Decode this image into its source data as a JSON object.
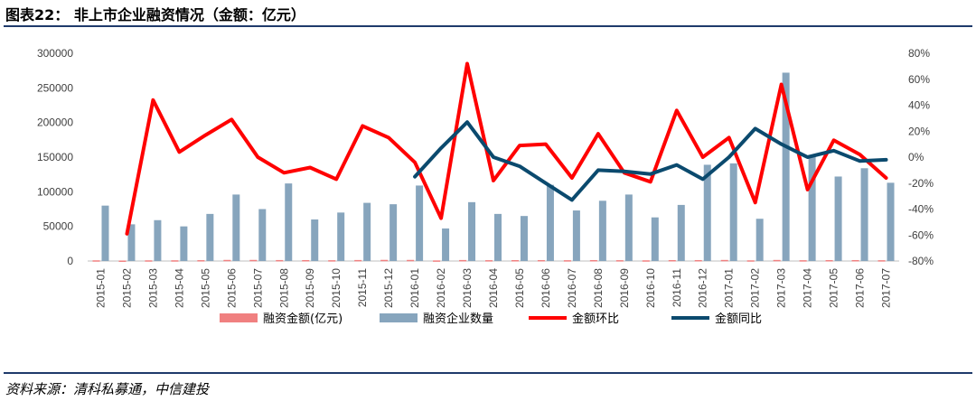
{
  "header": {
    "title": "图表22：  非上市企业融资情况（金额：亿元）"
  },
  "footer": {
    "source": "资料来源：清科私募通，中信建投"
  },
  "colors": {
    "amount": "#f08080",
    "count": "#87a5bd",
    "mom": "#ff0000",
    "yoy": "#0b4a6e",
    "rule": "#1f3a6b"
  },
  "chart_data": {
    "type": "bar",
    "categories": [
      "2015-01",
      "2015-02",
      "2015-03",
      "2015-04",
      "2015-05",
      "2015-06",
      "2015-07",
      "2015-08",
      "2015-09",
      "2015-10",
      "2015-11",
      "2015-12",
      "2016-01",
      "2016-02",
      "2016-03",
      "2016-04",
      "2016-05",
      "2016-06",
      "2016-07",
      "2016-08",
      "2016-09",
      "2016-10",
      "2016-11",
      "2016-12",
      "2017-01",
      "2017-02",
      "2017-03",
      "2017-04",
      "2017-05",
      "2017-06",
      "2017-07"
    ],
    "left_axis": {
      "ylim": [
        0,
        300000
      ],
      "ticks": [
        0,
        50000,
        100000,
        150000,
        200000,
        250000,
        300000
      ]
    },
    "right_axis": {
      "ylim": [
        -80,
        80
      ],
      "ticks": [
        -80,
        -60,
        -40,
        -20,
        0,
        20,
        40,
        60,
        80
      ],
      "unit": "%"
    },
    "series": [
      {
        "name": "融资金额(亿元)",
        "type": "bar",
        "axis": "left",
        "values": [
          1000,
          700,
          1000,
          1050,
          1250,
          1600,
          1600,
          1400,
          1350,
          1150,
          1450,
          1650,
          1600,
          850,
          1450,
          1200,
          1300,
          1350,
          1150,
          1350,
          1200,
          1000,
          1350,
          1350,
          1550,
          1000,
          1550,
          1150,
          1300,
          1350,
          1150
        ]
      },
      {
        "name": "融资企业数量",
        "type": "bar",
        "axis": "left",
        "values": [
          80000,
          53000,
          59000,
          50000,
          68000,
          96000,
          75000,
          112000,
          60000,
          70000,
          84000,
          82000,
          109000,
          47000,
          85000,
          68000,
          65000,
          110000,
          73000,
          87000,
          96000,
          63000,
          81000,
          139000,
          141000,
          61000,
          272000,
          153000,
          122000,
          134000,
          113000
        ]
      },
      {
        "name": "金额环比",
        "type": "line",
        "axis": "right",
        "values": [
          null,
          -59,
          44,
          4,
          17,
          29,
          0,
          -12,
          -8,
          -17,
          24,
          15,
          -4,
          -47,
          72,
          -18,
          9,
          10,
          -16,
          18,
          -12,
          -19,
          36,
          0,
          15,
          -35,
          56,
          -25,
          13,
          2,
          -16
        ]
      },
      {
        "name": "金额同比",
        "type": "line",
        "axis": "right",
        "values": [
          null,
          null,
          null,
          null,
          null,
          null,
          null,
          null,
          null,
          null,
          null,
          null,
          -15,
          7,
          27,
          0,
          -7,
          -20,
          -33,
          -10,
          -11,
          -13,
          -6,
          -17,
          0,
          22,
          10,
          0,
          5,
          -3,
          -2
        ]
      }
    ],
    "legend_position": "bottom",
    "grid": false
  }
}
